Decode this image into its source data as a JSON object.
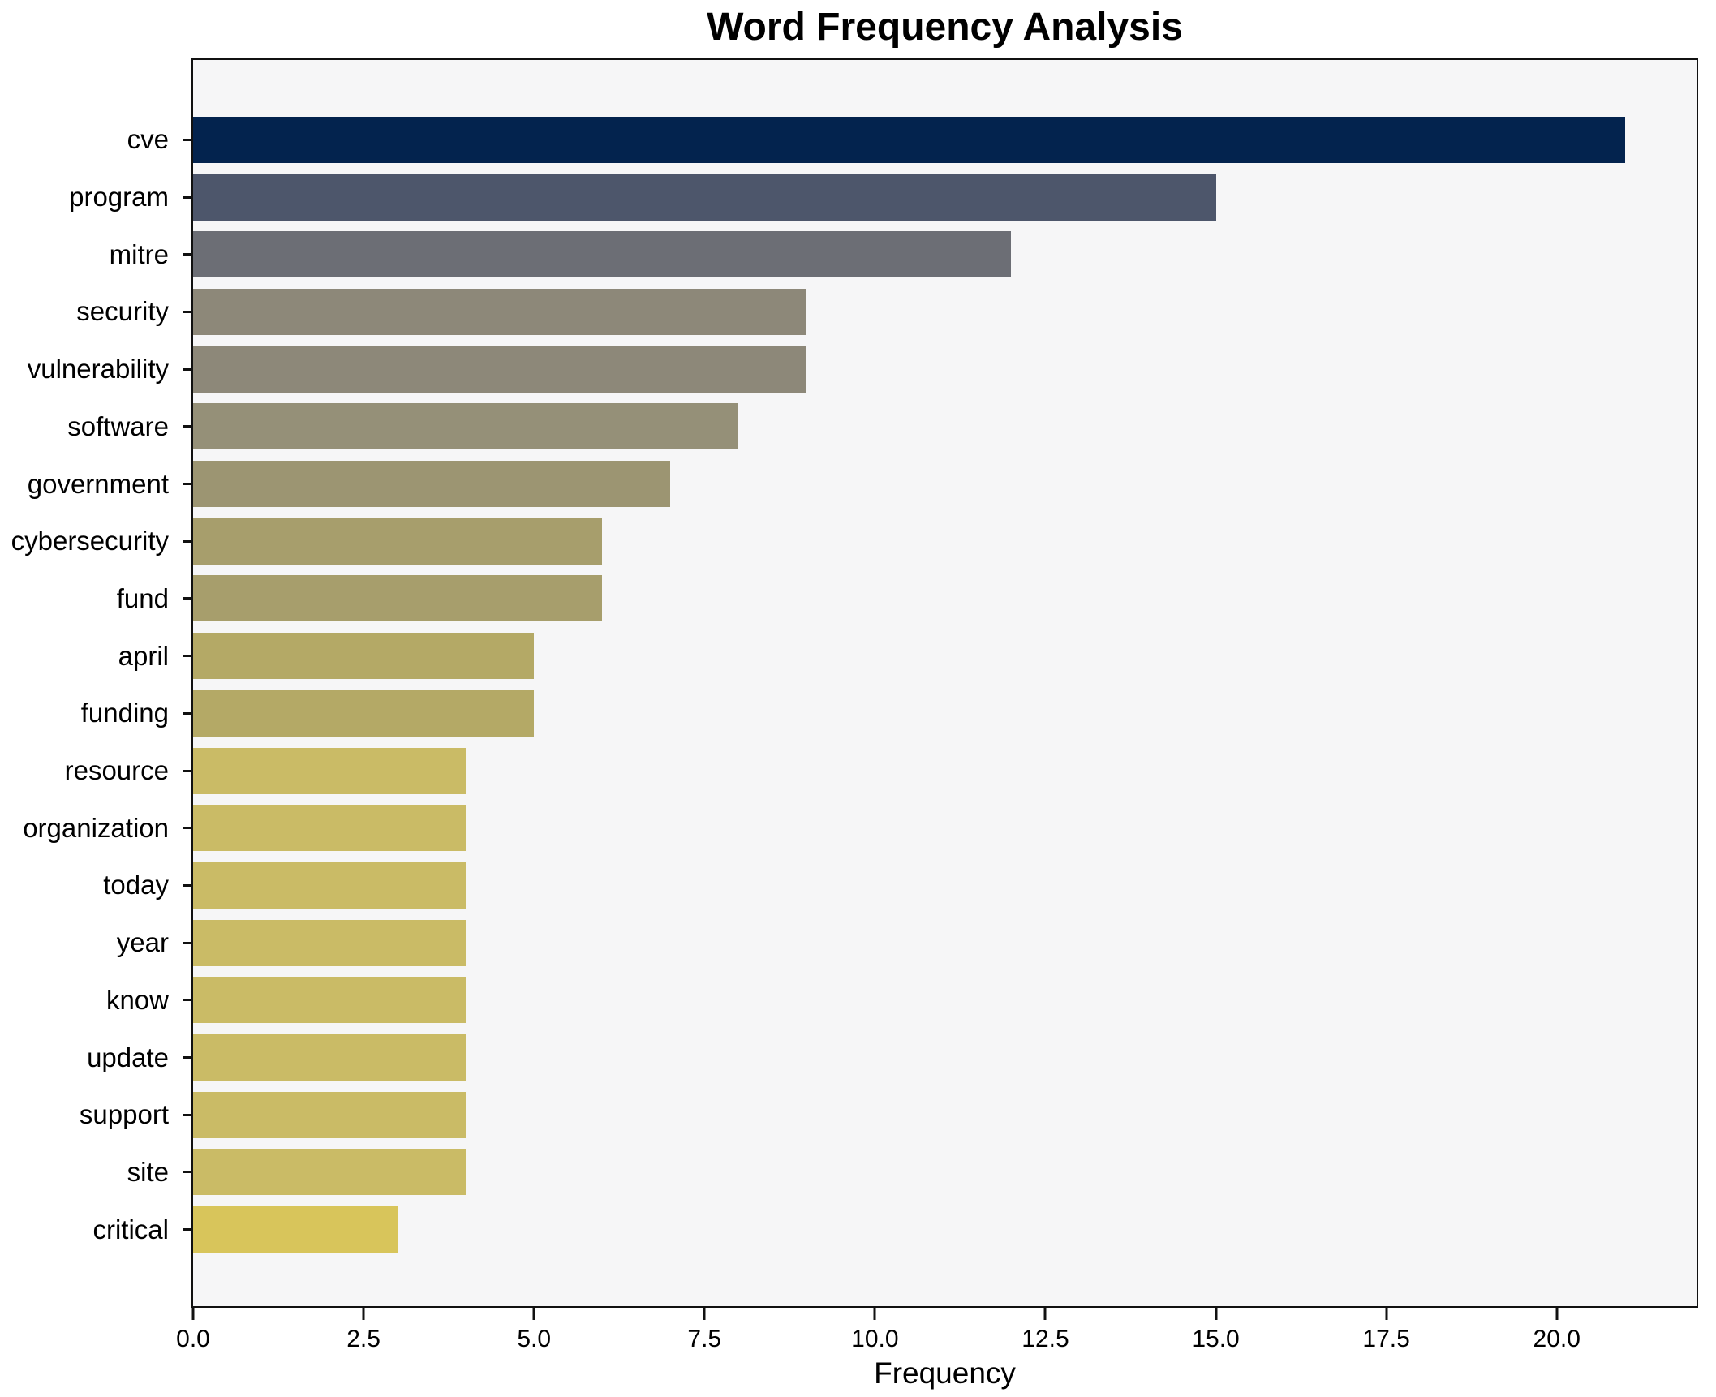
{
  "chart_data": {
    "type": "bar",
    "orientation": "horizontal",
    "title": "Word Frequency Analysis",
    "xlabel": "Frequency",
    "ylabel": "",
    "grid": false,
    "legend": null,
    "xlim": [
      0,
      22.05
    ],
    "categories": [
      "cve",
      "program",
      "mitre",
      "security",
      "vulnerability",
      "software",
      "government",
      "cybersecurity",
      "fund",
      "april",
      "funding",
      "resource",
      "organization",
      "today",
      "year",
      "know",
      "update",
      "support",
      "site",
      "critical"
    ],
    "values": [
      21,
      15,
      12,
      9,
      9,
      8,
      7,
      6,
      6,
      5,
      5,
      4,
      4,
      4,
      4,
      4,
      4,
      4,
      4,
      3
    ],
    "bar_colors": [
      "#03234e",
      "#4d566b",
      "#6c6e75",
      "#8d8879",
      "#8d8879",
      "#959078",
      "#9c9572",
      "#a79e6c",
      "#a79e6c",
      "#b4a966",
      "#b4a966",
      "#cabb66",
      "#cabb66",
      "#cabb66",
      "#cabb66",
      "#cabb66",
      "#cabb66",
      "#cabb66",
      "#cabb66",
      "#d8c55b"
    ],
    "xticks": {
      "values": [
        0,
        2.5,
        5,
        7.5,
        10,
        12.5,
        15,
        17.5,
        20
      ],
      "labels": [
        "0.0",
        "2.5",
        "5.0",
        "7.5",
        "10.0",
        "12.5",
        "15.0",
        "17.5",
        "20.0"
      ]
    },
    "colors": {
      "figure_background": "#ffffff",
      "plot_background": "#f6f6f7",
      "spine": "#111111",
      "text": "#000000"
    }
  }
}
